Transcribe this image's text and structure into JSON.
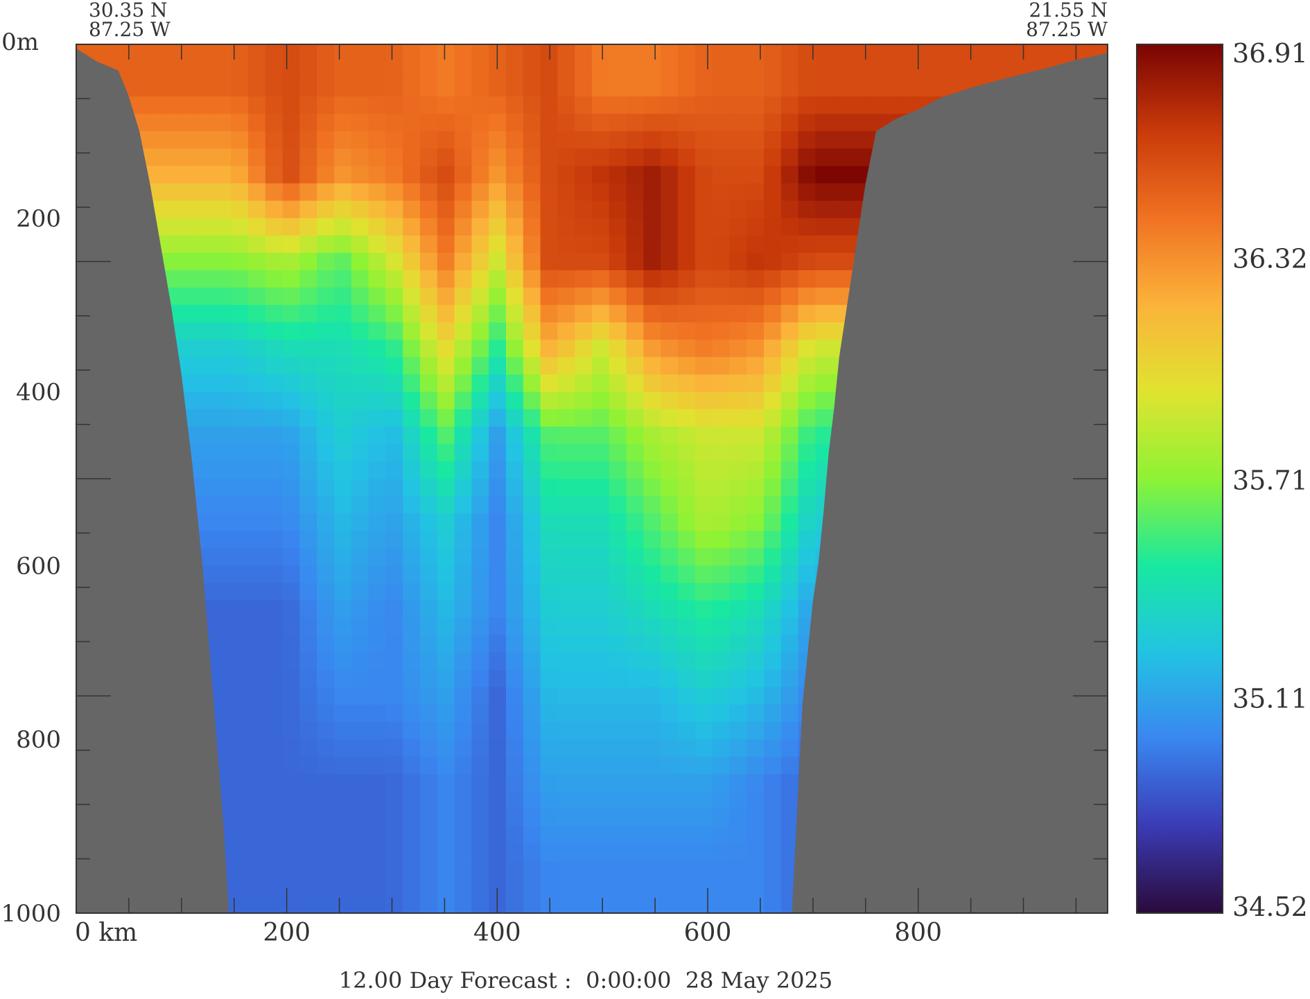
{
  "chart_data": {
    "type": "heatmap",
    "title": "",
    "corner_labels": {
      "start_lat": "30.35 N",
      "start_lon": "87.25 W",
      "end_lat": "21.55 N",
      "end_lon": "87.25 W"
    },
    "xlabel": "km",
    "ylabel": "m",
    "xlim": [
      0,
      980
    ],
    "ylim": [
      0,
      1000
    ],
    "y_inverted": true,
    "x_ticks": [
      "0 km",
      "200",
      "400",
      "600",
      "800"
    ],
    "x_tick_values": [
      0,
      200,
      400,
      600,
      800
    ],
    "y_ticks": [
      "0m",
      "200",
      "400",
      "600",
      "800",
      "1000"
    ],
    "y_tick_values": [
      0,
      200,
      400,
      600,
      800,
      1000
    ],
    "colorbar": {
      "min": 34.52,
      "max": 36.91,
      "tick_labels": [
        "36.91",
        "36.32",
        "35.71",
        "35.11",
        "34.52"
      ],
      "tick_values": [
        36.91,
        36.32,
        35.71,
        35.11,
        34.52
      ]
    },
    "bottom_profile": {
      "distance_km": [
        0,
        20,
        40,
        50,
        60,
        70,
        80,
        90,
        100,
        110,
        120,
        130,
        140,
        145,
        680,
        685,
        690,
        695,
        700,
        705,
        710,
        715,
        720,
        725,
        730,
        740,
        750,
        760,
        780,
        800,
        820,
        850,
        880,
        920,
        950,
        980
      ],
      "depth_m": [
        5,
        20,
        30,
        60,
        100,
        160,
        230,
        300,
        380,
        480,
        600,
        750,
        900,
        1000,
        1000,
        880,
        760,
        700,
        640,
        600,
        540,
        470,
        420,
        360,
        320,
        240,
        160,
        100,
        85,
        75,
        62,
        50,
        40,
        28,
        18,
        10
      ]
    },
    "salinity_field": {
      "distance_km": [
        150,
        200,
        250,
        300,
        350,
        400,
        450,
        500,
        550,
        600,
        650,
        700
      ],
      "depth_m": [
        50,
        150,
        250,
        350,
        450,
        550,
        650,
        750,
        850,
        950
      ],
      "values": [
        [
          36.5,
          36.6,
          36.5,
          36.5,
          36.4,
          36.5,
          36.6,
          36.4,
          36.4,
          36.5,
          36.5,
          36.6
        ],
        [
          36.2,
          36.6,
          36.3,
          36.4,
          36.6,
          36.3,
          36.6,
          36.7,
          36.8,
          36.6,
          36.6,
          36.9
        ],
        [
          35.7,
          35.8,
          35.6,
          35.9,
          36.4,
          35.9,
          36.6,
          36.6,
          36.8,
          36.6,
          36.7,
          36.6
        ],
        [
          35.3,
          35.4,
          35.4,
          35.5,
          36.0,
          35.5,
          36.2,
          35.9,
          36.3,
          36.4,
          36.3,
          35.9
        ],
        [
          35.1,
          35.1,
          35.3,
          35.2,
          35.6,
          35.1,
          35.6,
          35.6,
          35.8,
          35.9,
          35.9,
          35.5
        ],
        [
          35.0,
          35.0,
          35.2,
          35.1,
          35.3,
          35.0,
          35.4,
          35.4,
          35.6,
          35.8,
          35.7,
          35.3
        ],
        [
          34.9,
          34.9,
          35.1,
          35.0,
          35.2,
          35.0,
          35.3,
          35.3,
          35.4,
          35.5,
          35.4,
          35.1
        ],
        [
          34.9,
          34.9,
          35.0,
          35.0,
          35.1,
          34.9,
          35.2,
          35.2,
          35.2,
          35.3,
          35.2,
          35.0
        ],
        [
          34.9,
          34.9,
          34.9,
          34.9,
          35.0,
          34.9,
          35.1,
          35.1,
          35.1,
          35.1,
          35.0,
          34.9
        ],
        [
          34.9,
          34.9,
          34.9,
          34.9,
          35.0,
          34.9,
          35.0,
          35.0,
          35.0,
          35.0,
          35.0,
          34.9
        ]
      ]
    },
    "colors": {
      "land": "#666666",
      "frame": "#333333"
    },
    "colormap": [
      "#2a0a3a",
      "#3b3bb5",
      "#3a86f0",
      "#22c3e3",
      "#19e8a0",
      "#8ef235",
      "#e0e330",
      "#fbb33a",
      "#f07222",
      "#c93a0a",
      "#7a0403"
    ],
    "footer": "12.00 Day Forecast :  0:00:00  28 May 2025"
  }
}
